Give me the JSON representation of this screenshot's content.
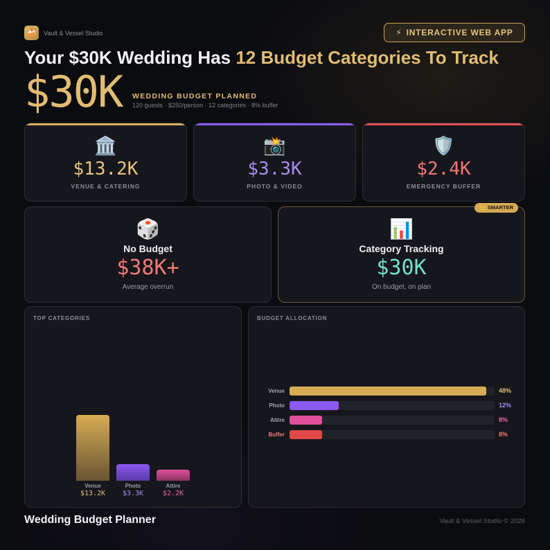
{
  "brand": {
    "name": "Vault & Vessel Studio",
    "logo_icon": "🍰"
  },
  "badge": {
    "icon": "⚡",
    "label": "INTERACTIVE WEB APP"
  },
  "headline": {
    "lead": "Your $30K Wedding Has ",
    "accent": "12 Budget Categories To Track"
  },
  "hero": {
    "amount": "$30K",
    "label": "WEDDING BUDGET PLANNED",
    "meta": "120 guests · $250/person · 12 categories · 8% buffer"
  },
  "stats": [
    {
      "icon": "🏛️",
      "value": "$13.2K",
      "label": "VENUE & CATERING",
      "color": "#e8c47c",
      "line": "#d9b15e"
    },
    {
      "icon": "📸",
      "value": "$3.3K",
      "label": "PHOTO & VIDEO",
      "color": "#a98bf0",
      "line": "#8a5cf0"
    },
    {
      "icon": "🛡️",
      "value": "$2.4K",
      "label": "EMERGENCY BUFFER",
      "color": "#f07a78",
      "line": "#e0504e"
    }
  ],
  "compare": {
    "left": {
      "icon": "🎲",
      "title": "No Budget",
      "value": "$38K+",
      "subtitle": "Average overrun",
      "color": "#f07a78"
    },
    "right": {
      "icon": "📊",
      "title": "Category Tracking",
      "value": "$30K",
      "subtitle": "On budget, on plan",
      "color": "#6fe3c6",
      "tag": "👑 SMARTER"
    }
  },
  "top_categories": {
    "title": "TOP CATEGORIES",
    "bars": [
      {
        "name": "Venue",
        "value": 13.2,
        "label": "$13.2K",
        "color_top": "#d6ac55",
        "color_bottom": "#6a5532",
        "label_color": "#e2bc72"
      },
      {
        "name": "Photo",
        "value": 3.3,
        "label": "$3.3K",
        "color_top": "#8b58f0",
        "color_bottom": "#5b3aa8",
        "label_color": "#a98bf0"
      },
      {
        "name": "Attire",
        "value": 2.2,
        "label": "$2.2K",
        "color_top": "#e04f9a",
        "color_bottom": "#8a3462",
        "label_color": "#e869ae"
      }
    ]
  },
  "allocation": {
    "title": "BUDGET ALLOCATION",
    "rows": [
      {
        "name": "Venue",
        "pct": 48,
        "label": "48%",
        "color": "#d6ac55",
        "name_color": "#a3a4ad"
      },
      {
        "name": "Photo",
        "pct": 12,
        "label": "12%",
        "color": "#8b58f0",
        "name_color": "#a3a4ad"
      },
      {
        "name": "Attire",
        "pct": 8,
        "label": "8%",
        "color": "#e04f9a",
        "name_color": "#a3a4ad"
      },
      {
        "name": "Buffer",
        "pct": 8,
        "label": "8%",
        "color": "#e0484a",
        "name_color": "#f07a78"
      }
    ]
  },
  "footer": {
    "title": "Wedding Budget Planner",
    "copyright": "Vault & Vessel Studio © 2026"
  }
}
